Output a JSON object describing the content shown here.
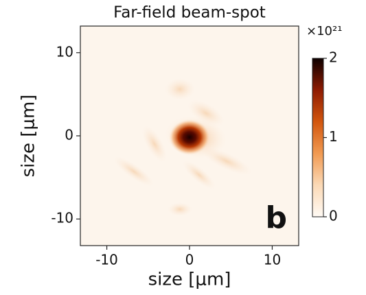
{
  "chart_data": {
    "type": "heatmap",
    "title": "Far-field beam-spot",
    "x_label": "size [μm]",
    "y_label": "size [μm]",
    "xlim": [
      -13.2,
      13.2
    ],
    "xticks": [
      -10,
      0,
      10
    ],
    "ylim": [
      -13.2,
      13.2
    ],
    "yticks": [
      -10,
      0,
      10
    ],
    "annotation": "b",
    "colorbar": {
      "scale_label": "×10²¹",
      "lim": [
        0,
        2
      ],
      "ticks": [
        0,
        1,
        2
      ]
    }
  }
}
